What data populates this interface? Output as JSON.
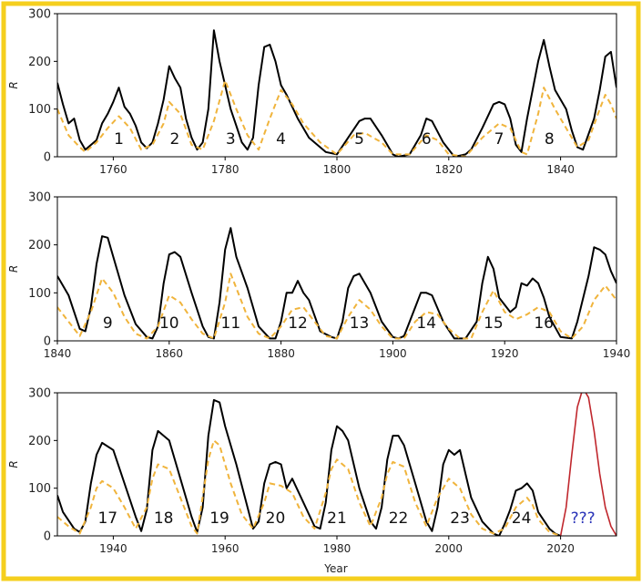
{
  "colors": {
    "frame": "#f5cf1e",
    "smoothed": "#000000",
    "raw": "#f0b43c",
    "prediction_line": "#c0272d",
    "prediction_label": "#2a34b8"
  },
  "chart_data": [
    {
      "type": "line",
      "xlabel": "",
      "ylabel": "R",
      "xlim": [
        1750,
        1850
      ],
      "ylim": [
        0,
        300
      ],
      "xticks": [
        "1760",
        "1780",
        "1800",
        "1820",
        "1840"
      ],
      "yticks": [
        "0",
        "100",
        "200",
        "300"
      ],
      "series": [
        {
          "name": "smoothed",
          "style": "solid",
          "x": [
            1750,
            1751,
            1752,
            1753,
            1754,
            1755,
            1757,
            1758,
            1759,
            1760,
            1761,
            1762,
            1763,
            1764,
            1765,
            1766,
            1767,
            1768,
            1769,
            1770,
            1771,
            1772,
            1773,
            1774,
            1775,
            1776,
            1777,
            1778,
            1779,
            1780,
            1781,
            1782,
            1783,
            1784,
            1785,
            1786,
            1787,
            1788,
            1789,
            1790,
            1791,
            1793,
            1795,
            1798,
            1800,
            1802,
            1804,
            1805,
            1806,
            1808,
            1810,
            1811,
            1813,
            1815,
            1816,
            1817,
            1819,
            1821,
            1823,
            1824,
            1826,
            1828,
            1829,
            1830,
            1831,
            1832,
            1833,
            1834,
            1836,
            1837,
            1838,
            1839,
            1841,
            1842,
            1843,
            1844,
            1846,
            1847,
            1848,
            1849,
            1850
          ],
          "values": [
            155,
            110,
            70,
            80,
            35,
            15,
            35,
            70,
            90,
            115,
            145,
            105,
            90,
            65,
            30,
            18,
            30,
            70,
            120,
            190,
            165,
            145,
            80,
            40,
            15,
            30,
            100,
            265,
            200,
            150,
            100,
            65,
            30,
            15,
            40,
            150,
            230,
            235,
            200,
            150,
            130,
            80,
            40,
            10,
            5,
            40,
            75,
            80,
            80,
            45,
            5,
            0,
            5,
            45,
            80,
            75,
            30,
            0,
            5,
            15,
            60,
            110,
            115,
            110,
            80,
            25,
            10,
            80,
            200,
            245,
            190,
            140,
            100,
            55,
            20,
            15,
            80,
            140,
            210,
            220,
            145
          ]
        },
        {
          "name": "raw",
          "style": "dashed",
          "x": [
            1750,
            1752,
            1754,
            1755,
            1757,
            1759,
            1761,
            1763,
            1765,
            1767,
            1769,
            1770,
            1772,
            1774,
            1776,
            1778,
            1780,
            1782,
            1784,
            1786,
            1788,
            1790,
            1792,
            1794,
            1797,
            1800,
            1803,
            1805,
            1808,
            1810,
            1813,
            1816,
            1818,
            1820,
            1823,
            1826,
            1829,
            1831,
            1833,
            1834,
            1836,
            1837,
            1839,
            1841,
            1843,
            1845,
            1847,
            1848,
            1849,
            1850
          ],
          "values": [
            100,
            45,
            20,
            10,
            30,
            60,
            85,
            60,
            15,
            25,
            70,
            115,
            90,
            25,
            15,
            75,
            160,
            100,
            45,
            15,
            80,
            140,
            110,
            70,
            30,
            5,
            45,
            50,
            30,
            5,
            5,
            45,
            35,
            5,
            0,
            40,
            70,
            60,
            10,
            5,
            90,
            145,
            100,
            60,
            20,
            35,
            100,
            130,
            110,
            80
          ]
        }
      ],
      "annotations": [
        "1",
        "2",
        "3",
        "4",
        "5",
        "6",
        "7",
        "8"
      ],
      "annotation_x": [
        1761,
        1771,
        1781,
        1790,
        1804,
        1816,
        1829,
        1838
      ],
      "annotation_y": 38
    },
    {
      "type": "line",
      "xlabel": "",
      "ylabel": "R",
      "xlim": [
        1840,
        1940
      ],
      "ylim": [
        0,
        300
      ],
      "xticks": [
        "1840",
        "1860",
        "1880",
        "1900",
        "1920",
        "1940"
      ],
      "yticks": [
        "0",
        "100",
        "200",
        "300"
      ],
      "series": [
        {
          "name": "smoothed",
          "style": "solid",
          "x": [
            1840,
            1842,
            1844,
            1845,
            1846,
            1847,
            1848,
            1849,
            1850,
            1852,
            1854,
            1856,
            1857,
            1858,
            1859,
            1860,
            1861,
            1862,
            1864,
            1866,
            1867,
            1868,
            1869,
            1870,
            1871,
            1872,
            1874,
            1876,
            1878,
            1879,
            1880,
            1881,
            1882,
            1883,
            1884,
            1885,
            1887,
            1889,
            1890,
            1891,
            1892,
            1893,
            1894,
            1896,
            1898,
            1900,
            1901,
            1902,
            1904,
            1905,
            1906,
            1907,
            1909,
            1911,
            1912,
            1913,
            1915,
            1916,
            1917,
            1918,
            1919,
            1921,
            1922,
            1923,
            1924,
            1925,
            1926,
            1927,
            1928,
            1930,
            1932,
            1933,
            1935,
            1936,
            1937,
            1938,
            1939,
            1940
          ],
          "values": [
            135,
            95,
            25,
            20,
            70,
            160,
            218,
            215,
            175,
            95,
            35,
            8,
            5,
            30,
            120,
            180,
            185,
            175,
            100,
            30,
            8,
            5,
            80,
            190,
            235,
            175,
            110,
            30,
            5,
            5,
            40,
            100,
            100,
            125,
            100,
            85,
            20,
            8,
            5,
            40,
            110,
            135,
            140,
            100,
            40,
            8,
            5,
            10,
            70,
            100,
            100,
            95,
            40,
            5,
            5,
            5,
            40,
            120,
            175,
            150,
            90,
            60,
            70,
            120,
            115,
            130,
            120,
            90,
            50,
            8,
            5,
            40,
            135,
            195,
            190,
            180,
            145,
            120
          ]
        },
        {
          "name": "raw",
          "style": "dashed",
          "x": [
            1840,
            1842,
            1844,
            1846,
            1848,
            1850,
            1852,
            1854,
            1856,
            1858,
            1860,
            1862,
            1864,
            1866,
            1868,
            1870,
            1871,
            1872,
            1874,
            1876,
            1878,
            1880,
            1882,
            1884,
            1886,
            1888,
            1890,
            1892,
            1894,
            1896,
            1898,
            1900,
            1902,
            1904,
            1906,
            1908,
            1910,
            1912,
            1914,
            1916,
            1918,
            1920,
            1922,
            1924,
            1926,
            1928,
            1930,
            1932,
            1934,
            1936,
            1938,
            1940
          ],
          "values": [
            70,
            40,
            10,
            60,
            130,
            100,
            50,
            15,
            5,
            30,
            95,
            80,
            45,
            15,
            5,
            80,
            140,
            110,
            50,
            15,
            5,
            30,
            65,
            70,
            40,
            10,
            5,
            50,
            85,
            65,
            30,
            5,
            5,
            40,
            60,
            55,
            25,
            5,
            5,
            60,
            105,
            60,
            45,
            55,
            70,
            60,
            20,
            5,
            30,
            85,
            115,
            85
          ]
        }
      ],
      "annotations": [
        "9",
        "10",
        "11",
        "12",
        "13",
        "14",
        "15",
        "16"
      ],
      "annotation_x": [
        1849,
        1860,
        1871,
        1883,
        1894,
        1906,
        1918,
        1927
      ],
      "annotation_y": 38
    },
    {
      "type": "line",
      "xlabel": "Year",
      "ylabel": "R",
      "xlim": [
        1930,
        2030
      ],
      "ylim": [
        0,
        300
      ],
      "xticks": [
        "1940",
        "1960",
        "1980",
        "2000",
        "2020"
      ],
      "yticks": [
        "0",
        "100",
        "200",
        "300"
      ],
      "series": [
        {
          "name": "smoothed",
          "style": "solid",
          "x": [
            1930,
            1931,
            1933,
            1934,
            1935,
            1936,
            1937,
            1938,
            1940,
            1942,
            1944,
            1945,
            1946,
            1947,
            1948,
            1949,
            1950,
            1952,
            1954,
            1955,
            1956,
            1957,
            1958,
            1959,
            1960,
            1962,
            1964,
            1965,
            1966,
            1967,
            1968,
            1969,
            1970,
            1971,
            1972,
            1974,
            1976,
            1977,
            1978,
            1979,
            1980,
            1981,
            1982,
            1984,
            1986,
            1987,
            1988,
            1989,
            1990,
            1991,
            1992,
            1994,
            1996,
            1997,
            1998,
            1999,
            2000,
            2001,
            2002,
            2003,
            2004,
            2006,
            2008,
            2009,
            2010,
            2011,
            2012,
            2013,
            2014,
            2015,
            2016,
            2018,
            2019,
            2020
          ],
          "values": [
            85,
            50,
            15,
            8,
            30,
            110,
            170,
            195,
            180,
            110,
            40,
            10,
            55,
            180,
            220,
            210,
            200,
            120,
            40,
            8,
            60,
            210,
            285,
            280,
            230,
            150,
            60,
            15,
            30,
            110,
            150,
            155,
            150,
            100,
            120,
            70,
            20,
            15,
            70,
            180,
            230,
            220,
            200,
            100,
            30,
            15,
            60,
            160,
            210,
            210,
            190,
            110,
            30,
            10,
            60,
            150,
            180,
            170,
            180,
            130,
            80,
            30,
            5,
            0,
            25,
            55,
            95,
            100,
            110,
            95,
            50,
            15,
            5,
            0
          ]
        },
        {
          "name": "raw",
          "style": "dashed",
          "x": [
            1930,
            1932,
            1934,
            1936,
            1937,
            1938,
            1940,
            1942,
            1944,
            1946,
            1947,
            1948,
            1950,
            1952,
            1954,
            1955,
            1957,
            1958,
            1959,
            1961,
            1963,
            1965,
            1967,
            1968,
            1970,
            1972,
            1974,
            1976,
            1978,
            1979,
            1980,
            1982,
            1984,
            1986,
            1988,
            1989,
            1990,
            1992,
            1994,
            1996,
            1998,
            1999,
            2000,
            2002,
            2004,
            2006,
            2008,
            2010,
            2012,
            2013,
            2014,
            2015,
            2016,
            2018,
            2020
          ],
          "values": [
            40,
            20,
            5,
            60,
            100,
            115,
            100,
            60,
            15,
            60,
            120,
            150,
            140,
            80,
            20,
            5,
            160,
            200,
            190,
            110,
            45,
            15,
            70,
            110,
            105,
            90,
            40,
            15,
            90,
            140,
            160,
            140,
            70,
            20,
            80,
            130,
            155,
            145,
            70,
            20,
            80,
            100,
            120,
            100,
            45,
            15,
            5,
            15,
            60,
            70,
            80,
            65,
            35,
            8,
            0
          ]
        },
        {
          "name": "prediction",
          "style": "solid",
          "x": [
            2020,
            2021,
            2022,
            2023,
            2024,
            2025,
            2026,
            2027,
            2028,
            2029,
            2030
          ],
          "values": [
            0,
            60,
            170,
            270,
            310,
            290,
            220,
            130,
            60,
            20,
            0
          ]
        }
      ],
      "annotations": [
        "17",
        "18",
        "19",
        "20",
        "21",
        "22",
        "23",
        "24",
        "???"
      ],
      "annotation_x": [
        1939,
        1949,
        1959,
        1969,
        1980,
        1991,
        2002,
        2013,
        2024
      ],
      "annotation_y": 38
    }
  ]
}
